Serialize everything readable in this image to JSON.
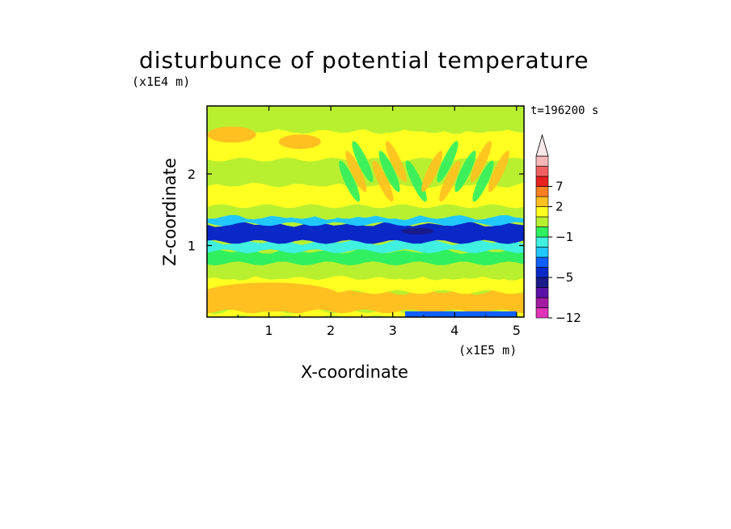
{
  "chart_data": {
    "type": "heatmap",
    "title": "disturbunce of potential temperature",
    "xlabel": "X-coordinate",
    "ylabel": "Z-coordinate",
    "x_unit": "(x1E5 m)",
    "y_unit": "(x1E4 m)",
    "annotation": "t=196200 s",
    "xlim": [
      0,
      5.12
    ],
    "ylim": [
      0,
      2.95
    ],
    "x_ticks": [
      "1",
      "2",
      "3",
      "4",
      "5"
    ],
    "y_ticks": [
      "1",
      "2"
    ],
    "colorbar": {
      "tick_labels": [
        "7",
        "2",
        "−1",
        "−5",
        "−12"
      ],
      "levels": [
        -12,
        -10,
        -8,
        -6,
        -5,
        -4,
        -3,
        -2,
        -1,
        0,
        1,
        2,
        3,
        5,
        7,
        9
      ],
      "colors": [
        "#e033b8",
        "#a21aa0",
        "#5a12a8",
        "#1a1a8a",
        "#0a28c8",
        "#1060ff",
        "#20c8ff",
        "#40f0e0",
        "#30f060",
        "#b8f030",
        "#ffff20",
        "#ffc020",
        "#ff8020",
        "#e82020",
        "#f06060",
        "#f8b8b8"
      ],
      "extend": "max"
    },
    "bands": [
      {
        "z": [
          0.0,
          0.08
        ],
        "level": 1
      },
      {
        "z": [
          0.08,
          0.35
        ],
        "level": 2
      },
      {
        "z": [
          0.35,
          0.55
        ],
        "level": 1
      },
      {
        "z": [
          0.55,
          0.75
        ],
        "level": 0
      },
      {
        "z": [
          0.75,
          0.92
        ],
        "level": -1
      },
      {
        "z": [
          0.92,
          1.05
        ],
        "level": -2
      },
      {
        "z": [
          1.05,
          1.3
        ],
        "level": -5
      },
      {
        "z": [
          1.3,
          1.4
        ],
        "level": -3
      },
      {
        "z": [
          1.4,
          1.55
        ],
        "level": 0
      },
      {
        "z": [
          1.55,
          1.85
        ],
        "level": 1
      },
      {
        "z": [
          1.85,
          2.2
        ],
        "level": 0
      },
      {
        "z": [
          2.2,
          2.6
        ],
        "level": 1
      },
      {
        "z": [
          2.6,
          2.95
        ],
        "level": 0
      }
    ]
  }
}
